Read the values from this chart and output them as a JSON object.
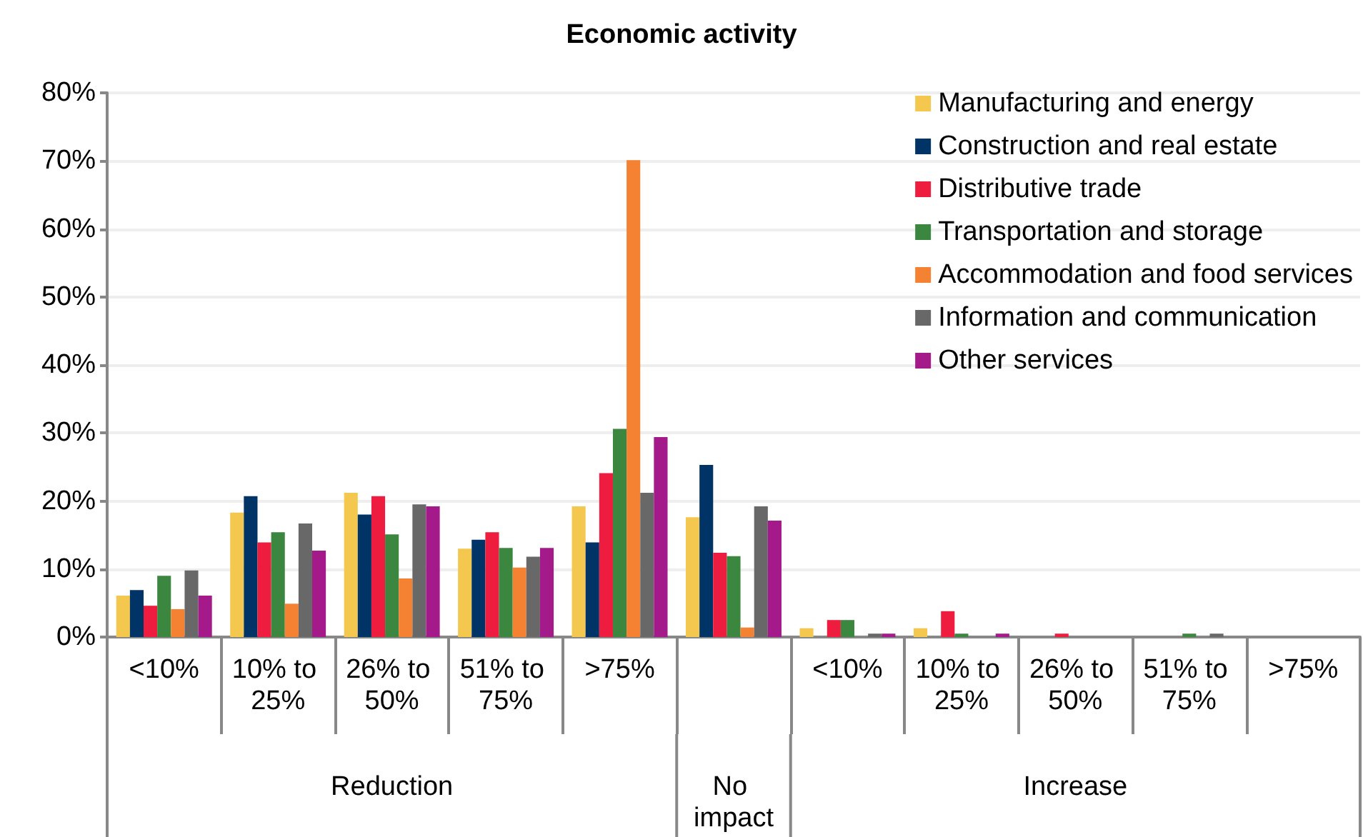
{
  "chart_data": {
    "type": "bar",
    "title": "Economic activity",
    "categories": [
      "<10%",
      "10% to 25%",
      "26% to 50%",
      "51% to 75%",
      ">75%",
      null,
      "<10%",
      "10% to 25%",
      "26% to 50%",
      "51% to 75%",
      ">75%"
    ],
    "series": [
      {
        "name": "Manufacturing and energy",
        "color": "#f4c74f",
        "values": [
          6.1,
          18.3,
          21.2,
          13.0,
          19.2,
          17.6,
          1.3,
          1.3,
          0,
          0,
          0
        ]
      },
      {
        "name": "Construction and real estate",
        "color": "#003366",
        "values": [
          6.9,
          20.7,
          18.0,
          14.3,
          13.9,
          25.3,
          0,
          0,
          0,
          0,
          0
        ]
      },
      {
        "name": "Distributive trade",
        "color": "#ee1c3e",
        "values": [
          4.6,
          13.9,
          20.7,
          15.4,
          24.1,
          12.4,
          2.5,
          3.8,
          0.5,
          0,
          0
        ]
      },
      {
        "name": "Transportation and storage",
        "color": "#3b873f",
        "values": [
          9.0,
          15.4,
          15.1,
          13.1,
          30.6,
          11.9,
          2.5,
          0.5,
          0,
          0.5,
          0
        ]
      },
      {
        "name": "Accommodation and food services",
        "color": "#f58233",
        "values": [
          4.1,
          4.9,
          8.6,
          10.2,
          70.1,
          1.4,
          0,
          0,
          0,
          0,
          0
        ]
      },
      {
        "name": "Information and communication",
        "color": "#686868",
        "values": [
          9.8,
          16.7,
          19.5,
          11.8,
          21.2,
          19.2,
          0.5,
          0,
          0,
          0.5,
          0
        ]
      },
      {
        "name": "Other services",
        "color": "#a41a8a",
        "values": [
          6.1,
          12.7,
          19.2,
          13.1,
          29.4,
          17.1,
          0.5,
          0.5,
          0,
          0,
          0
        ]
      }
    ],
    "ylim": [
      0,
      80
    ],
    "yticks": [
      {
        "value": 0,
        "label": "0%"
      },
      {
        "value": 10,
        "label": "10%"
      },
      {
        "value": 20,
        "label": "20%"
      },
      {
        "value": 30,
        "label": "30%"
      },
      {
        "value": 40,
        "label": "40%"
      },
      {
        "value": 50,
        "label": "50%"
      },
      {
        "value": 60,
        "label": "60%"
      },
      {
        "value": 70,
        "label": "70%"
      },
      {
        "value": 80,
        "label": "80%"
      }
    ],
    "annotations": [
      "Reduction",
      "No impact",
      "Increase"
    ],
    "grid": "y",
    "legend": "top right"
  }
}
